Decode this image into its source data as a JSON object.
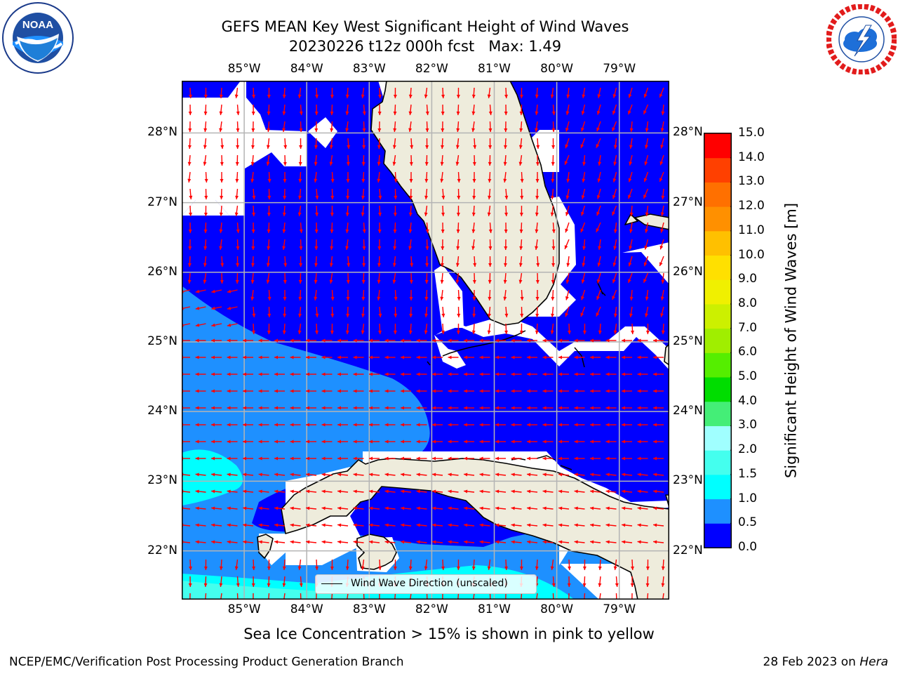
{
  "title": {
    "line1": "GEFS MEAN Key West Significant Height of Wind Waves",
    "line2": "20230226 t12z 000h fcst   Max: 1.49"
  },
  "logos": {
    "left": {
      "name": "noaa-logo",
      "text": "NOAA",
      "ring": "NATIONAL OCEANIC AND ATMOSPHERIC ADMINISTRATION · U.S. DEPARTMENT OF COMMERCE"
    },
    "right": {
      "name": "nws-logo",
      "ring": "NATIONAL WEATHER SERVICE"
    }
  },
  "map": {
    "region": "Florida / Gulf of Mexico / Cuba",
    "lon_labels": [
      "85°W",
      "84°W",
      "83°W",
      "82°W",
      "81°W",
      "80°W",
      "79°W"
    ],
    "lat_labels": [
      "28°N",
      "27°N",
      "26°N",
      "25°N",
      "24°N",
      "23°N",
      "22°N"
    ],
    "extent": {
      "lon": [
        -86.0,
        -78.2
      ],
      "lat": [
        21.3,
        28.75
      ]
    },
    "grid": true,
    "colors": {
      "land": "#eeecdc",
      "low_wave": "#0000ff",
      "arrow": "#ff0000",
      "gridline": "#b4b4b4"
    }
  },
  "colorbar": {
    "title": "Significant Height of Wind Waves [m]",
    "ticks": [
      "0.0",
      "0.5",
      "1.0",
      "1.5",
      "2.0",
      "3.0",
      "4.0",
      "5.0",
      "6.0",
      "7.0",
      "8.0",
      "9.0",
      "10.0",
      "11.0",
      "12.0",
      "13.0",
      "14.0",
      "15.0"
    ],
    "colors": [
      "#0000ff",
      "#1e90ff",
      "#00ffff",
      "#44ffee",
      "#a0ffff",
      "#44ee77",
      "#00dd00",
      "#55ee00",
      "#a0ee00",
      "#ccf000",
      "#f0f000",
      "#ffe000",
      "#ffc000",
      "#ff9000",
      "#ff7000",
      "#ff4000",
      "#ff0000"
    ]
  },
  "legend": {
    "label": "Wind Wave Direction (unscaled)"
  },
  "note": "Sea Ice Concentration > 15% is shown in pink to yellow",
  "footer": {
    "left": "NCEP/EMC/Verification Post Processing Product Generation Branch",
    "right_date": "28 Feb 2023 on ",
    "right_host": "Hera"
  }
}
